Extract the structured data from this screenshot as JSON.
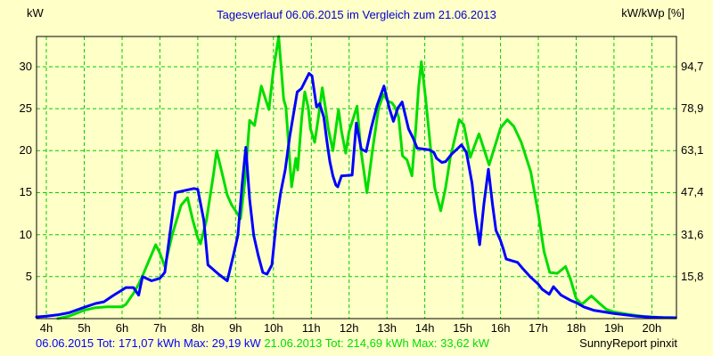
{
  "title": "Tagesverlauf 06.06.2015 im Vergleich zum 21.06.2013",
  "axis_labels": {
    "left": "kW",
    "right": "kW/kWp [%]"
  },
  "footer": {
    "series1_summary": "06.06.2015 Tot: 171,07 kWh Max: 29,19 kW",
    "series2_summary": "21.06.2013 Tot: 214,69 kWh Max: 33,62 kW",
    "credit": "SunnyReport pinxit"
  },
  "colors": {
    "background": "#FFFFC8",
    "plot_border": "#000000",
    "grid": "#00CC00",
    "series1": "#0000FF",
    "series2": "#00DD00",
    "title_text": "#0000CC",
    "tick_text": "#000000"
  },
  "chart_data": {
    "type": "line",
    "title": "Tagesverlauf 06.06.2015 im Vergleich zum 21.06.2013",
    "grid": true,
    "legend_position": "bottom",
    "xlim_hours": [
      3.74,
      20.65
    ],
    "ylim_kw": [
      0,
      33.6
    ],
    "x_ticks_hours": [
      4,
      5,
      6,
      7,
      8,
      9,
      10,
      11,
      12,
      13,
      14,
      15,
      16,
      17,
      18,
      19,
      20
    ],
    "x_tick_labels": [
      "4h",
      "5h",
      "6h",
      "7h",
      "8h",
      "9h",
      "10h",
      "11h",
      "12h",
      "13h",
      "14h",
      "15h",
      "16h",
      "17h",
      "18h",
      "19h",
      "20h"
    ],
    "left_axis": {
      "label": "kW",
      "ticks": [
        5,
        10,
        15,
        20,
        25,
        30
      ]
    },
    "right_axis": {
      "label": "kW/kWp [%]",
      "tick_labels": [
        "15,8",
        "31,6",
        "47,4",
        "63,1",
        "78,9",
        "94,7"
      ]
    },
    "series": [
      {
        "name": "06.06.2015",
        "color_key": "series1",
        "total": "171,07 kWh",
        "max": "29,19 kW",
        "points_time_kw": [
          [
            3.74,
            0.2
          ],
          [
            4.0,
            0.3
          ],
          [
            4.3,
            0.45
          ],
          [
            4.6,
            0.7
          ],
          [
            5.0,
            1.35
          ],
          [
            5.3,
            1.8
          ],
          [
            5.52,
            2.0
          ],
          [
            5.75,
            2.7
          ],
          [
            6.0,
            3.4
          ],
          [
            6.1,
            3.7
          ],
          [
            6.3,
            3.7
          ],
          [
            6.44,
            2.8
          ],
          [
            6.54,
            5.0
          ],
          [
            6.78,
            4.5
          ],
          [
            7.0,
            4.8
          ],
          [
            7.13,
            5.5
          ],
          [
            7.25,
            9.6
          ],
          [
            7.41,
            15.0
          ],
          [
            7.6,
            15.2
          ],
          [
            7.9,
            15.5
          ],
          [
            8.0,
            15.4
          ],
          [
            8.16,
            11.7
          ],
          [
            8.27,
            6.4
          ],
          [
            8.55,
            5.3
          ],
          [
            8.78,
            4.5
          ],
          [
            8.94,
            7.5
          ],
          [
            9.06,
            9.9
          ],
          [
            9.17,
            15.9
          ],
          [
            9.27,
            20.4
          ],
          [
            9.37,
            14.2
          ],
          [
            9.48,
            9.9
          ],
          [
            9.6,
            7.5
          ],
          [
            9.72,
            5.5
          ],
          [
            9.83,
            5.3
          ],
          [
            9.96,
            6.4
          ],
          [
            10.08,
            11.7
          ],
          [
            10.19,
            15.0
          ],
          [
            10.31,
            17.7
          ],
          [
            10.43,
            21.7
          ],
          [
            10.63,
            27.0
          ],
          [
            10.74,
            27.4
          ],
          [
            10.94,
            29.2
          ],
          [
            11.02,
            28.9
          ],
          [
            11.14,
            25.2
          ],
          [
            11.22,
            25.6
          ],
          [
            11.33,
            24.0
          ],
          [
            11.41,
            21.2
          ],
          [
            11.49,
            18.7
          ],
          [
            11.57,
            17.0
          ],
          [
            11.65,
            15.9
          ],
          [
            11.7,
            15.7
          ],
          [
            11.8,
            17.0
          ],
          [
            12.08,
            17.1
          ],
          [
            12.19,
            23.3
          ],
          [
            12.32,
            20.2
          ],
          [
            12.45,
            19.9
          ],
          [
            12.58,
            22.6
          ],
          [
            12.74,
            25.4
          ],
          [
            12.92,
            27.7
          ],
          [
            13.06,
            25.1
          ],
          [
            13.17,
            23.5
          ],
          [
            13.29,
            25.1
          ],
          [
            13.4,
            25.8
          ],
          [
            13.57,
            22.6
          ],
          [
            13.69,
            21.5
          ],
          [
            13.8,
            20.3
          ],
          [
            13.95,
            20.2
          ],
          [
            14.12,
            20.1
          ],
          [
            14.24,
            19.8
          ],
          [
            14.31,
            19.1
          ],
          [
            14.45,
            18.6
          ],
          [
            14.55,
            18.7
          ],
          [
            14.71,
            19.6
          ],
          [
            14.83,
            20.1
          ],
          [
            14.97,
            20.7
          ],
          [
            15.1,
            19.8
          ],
          [
            15.25,
            16.1
          ],
          [
            15.33,
            12.6
          ],
          [
            15.45,
            8.8
          ],
          [
            15.56,
            13.6
          ],
          [
            15.68,
            17.8
          ],
          [
            15.79,
            13.6
          ],
          [
            15.88,
            10.5
          ],
          [
            16.0,
            9.3
          ],
          [
            16.08,
            8.2
          ],
          [
            16.15,
            7.1
          ],
          [
            16.3,
            6.9
          ],
          [
            16.45,
            6.7
          ],
          [
            16.6,
            5.9
          ],
          [
            16.78,
            5.0
          ],
          [
            17.0,
            4.1
          ],
          [
            17.1,
            3.5
          ],
          [
            17.29,
            2.9
          ],
          [
            17.4,
            3.8
          ],
          [
            17.6,
            2.8
          ],
          [
            17.84,
            2.2
          ],
          [
            18.0,
            1.9
          ],
          [
            18.2,
            1.4
          ],
          [
            18.46,
            1.0
          ],
          [
            18.8,
            0.75
          ],
          [
            19.0,
            0.6
          ],
          [
            19.3,
            0.45
          ],
          [
            19.6,
            0.3
          ],
          [
            20.0,
            0.17
          ],
          [
            20.3,
            0.12
          ],
          [
            20.63,
            0.1
          ]
        ]
      },
      {
        "name": "21.06.2013",
        "color_key": "series2",
        "total": "214,69 kWh",
        "max": "33,62 kW",
        "points_time_kw": [
          [
            4.3,
            0.0
          ],
          [
            4.6,
            0.3
          ],
          [
            5.0,
            1.0
          ],
          [
            5.3,
            1.3
          ],
          [
            5.6,
            1.4
          ],
          [
            6.0,
            1.4
          ],
          [
            6.1,
            1.7
          ],
          [
            6.3,
            3.0
          ],
          [
            6.44,
            4.1
          ],
          [
            6.54,
            5.1
          ],
          [
            6.7,
            6.8
          ],
          [
            6.89,
            8.8
          ],
          [
            7.0,
            7.8
          ],
          [
            7.13,
            6.2
          ],
          [
            7.32,
            9.9
          ],
          [
            7.56,
            13.5
          ],
          [
            7.73,
            14.4
          ],
          [
            7.87,
            11.7
          ],
          [
            8.0,
            9.6
          ],
          [
            8.07,
            8.9
          ],
          [
            8.23,
            11.7
          ],
          [
            8.42,
            17.3
          ],
          [
            8.5,
            20.0
          ],
          [
            8.66,
            17.0
          ],
          [
            8.78,
            14.7
          ],
          [
            8.9,
            13.5
          ],
          [
            9.02,
            12.7
          ],
          [
            9.13,
            11.9
          ],
          [
            9.25,
            16.6
          ],
          [
            9.37,
            23.6
          ],
          [
            9.5,
            23.0
          ],
          [
            9.68,
            27.7
          ],
          [
            9.88,
            24.9
          ],
          [
            10.0,
            29.6
          ],
          [
            10.14,
            33.6
          ],
          [
            10.27,
            26.1
          ],
          [
            10.33,
            25.2
          ],
          [
            10.48,
            15.7
          ],
          [
            10.59,
            19.1
          ],
          [
            10.64,
            17.7
          ],
          [
            10.75,
            24.0
          ],
          [
            10.83,
            27.0
          ],
          [
            10.92,
            25.1
          ],
          [
            10.98,
            22.6
          ],
          [
            11.09,
            21.0
          ],
          [
            11.19,
            24.0
          ],
          [
            11.29,
            27.5
          ],
          [
            11.37,
            25.2
          ],
          [
            11.45,
            22.6
          ],
          [
            11.57,
            20.0
          ],
          [
            11.72,
            24.9
          ],
          [
            11.8,
            22.3
          ],
          [
            11.91,
            19.7
          ],
          [
            12.0,
            22.3
          ],
          [
            12.12,
            24.0
          ],
          [
            12.21,
            25.3
          ],
          [
            12.31,
            20.1
          ],
          [
            12.47,
            15.0
          ],
          [
            12.62,
            20.1
          ],
          [
            12.78,
            25.1
          ],
          [
            12.91,
            26.7
          ],
          [
            13.02,
            25.9
          ],
          [
            13.13,
            25.7
          ],
          [
            13.21,
            25.2
          ],
          [
            13.31,
            24.0
          ],
          [
            13.41,
            19.4
          ],
          [
            13.53,
            18.9
          ],
          [
            13.66,
            17.0
          ],
          [
            13.76,
            22.6
          ],
          [
            13.84,
            27.7
          ],
          [
            13.91,
            30.6
          ],
          [
            14.02,
            26.3
          ],
          [
            14.16,
            20.0
          ],
          [
            14.26,
            15.6
          ],
          [
            14.42,
            12.85
          ],
          [
            14.55,
            15.6
          ],
          [
            14.67,
            19.1
          ],
          [
            14.91,
            23.7
          ],
          [
            15.03,
            23.1
          ],
          [
            15.2,
            19.2
          ],
          [
            15.43,
            22.0
          ],
          [
            15.7,
            18.3
          ],
          [
            16.0,
            22.7
          ],
          [
            16.18,
            23.7
          ],
          [
            16.35,
            22.9
          ],
          [
            16.55,
            21.0
          ],
          [
            16.8,
            17.5
          ],
          [
            17.0,
            12.5
          ],
          [
            17.15,
            8.0
          ],
          [
            17.3,
            5.5
          ],
          [
            17.5,
            5.4
          ],
          [
            17.72,
            6.2
          ],
          [
            17.85,
            4.7
          ],
          [
            18.0,
            2.4
          ],
          [
            18.15,
            1.7
          ],
          [
            18.4,
            2.7
          ],
          [
            18.62,
            1.8
          ],
          [
            18.8,
            1.1
          ],
          [
            19.0,
            0.8
          ],
          [
            19.4,
            0.5
          ],
          [
            19.8,
            0.25
          ],
          [
            20.2,
            0.15
          ],
          [
            20.63,
            0.12
          ]
        ]
      }
    ]
  }
}
